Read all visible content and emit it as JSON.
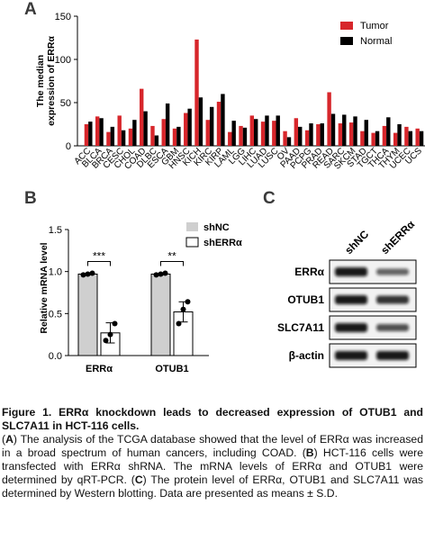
{
  "panels": {
    "a": "A",
    "b": "B",
    "c": "C"
  },
  "chart_data": [
    {
      "type": "bar",
      "ylabel": "The median expression of ERRα",
      "ylim": [
        0,
        150
      ],
      "yticks": [
        0,
        50,
        100,
        150
      ],
      "legend_position": "top-right",
      "categories": [
        "ACC",
        "BLCA",
        "BRCA",
        "CESC",
        "CHOL",
        "COAD",
        "DLBC",
        "ESCA",
        "GBM",
        "HNSC",
        "KICH",
        "KIRC",
        "KIRP",
        "LAML",
        "LGG",
        "LIHC",
        "LUAD",
        "LUSC",
        "OV",
        "PAAD",
        "PCPG",
        "PRAD",
        "READ",
        "SARC",
        "SKCM",
        "STAD",
        "TGCT",
        "THCA",
        "THYM",
        "UCEC",
        "UCS"
      ],
      "series": [
        {
          "name": "Tumor",
          "color": "#d7262b",
          "values": [
            25,
            34,
            16,
            35,
            20,
            66,
            23,
            31,
            20,
            38,
            123,
            30,
            51,
            16,
            23,
            35,
            28,
            29,
            17,
            32,
            18,
            25,
            62,
            26,
            27,
            17,
            15,
            23,
            15,
            22,
            20
          ]
        },
        {
          "name": "Normal",
          "color": "#000000",
          "values": [
            28,
            32,
            22,
            18,
            30,
            40,
            12,
            49,
            22,
            43,
            56,
            45,
            60,
            29,
            21,
            31,
            35,
            35,
            10,
            22,
            26,
            26,
            37,
            36,
            34,
            30,
            17,
            33,
            25,
            17,
            17
          ]
        }
      ]
    },
    {
      "type": "bar",
      "ylabel": "Relative mRNA level",
      "ylim": [
        0,
        1.5
      ],
      "yticks": [
        "0.0",
        "0.5",
        "1.0",
        "1.5"
      ],
      "legend_position": "top-right",
      "categories": [
        "ERRα",
        "OTUB1"
      ],
      "series": [
        {
          "name": "shNC",
          "color": "#cfcfcf",
          "values": [
            0.97,
            0.97
          ],
          "errors": [
            0.01,
            0.01
          ],
          "points": [
            [
              0.96,
              0.97,
              0.98
            ],
            [
              0.96,
              0.97,
              0.98
            ]
          ]
        },
        {
          "name": "shERRα",
          "color": "#ffffff",
          "values": [
            0.27,
            0.52
          ],
          "errors": [
            0.12,
            0.12
          ],
          "points": [
            [
              0.18,
              0.25,
              0.38
            ],
            [
              0.38,
              0.55,
              0.64
            ]
          ]
        }
      ],
      "significance": [
        "***",
        "**"
      ]
    }
  ],
  "western": {
    "lanes": [
      "shNC",
      "shERRα"
    ],
    "rows": [
      {
        "label": "ERRα",
        "intensity": [
          1.0,
          0.45
        ]
      },
      {
        "label": "OTUB1",
        "intensity": [
          1.0,
          0.8
        ]
      },
      {
        "label": "SLC7A11",
        "intensity": [
          1.0,
          0.6
        ]
      },
      {
        "label": "β-actin",
        "intensity": [
          1.0,
          1.0
        ]
      }
    ]
  },
  "caption": {
    "title": "Figure 1. ERRα knockdown leads to decreased expression of OTUB1 and SLC7A11 in HCT-116 cells.",
    "body": "(A) The analysis of the TCGA database showed that the level of ERRα was increased in a broad spectrum of human cancers, including COAD. (B) HCT-116 cells were transfected with ERRα shRNA. The mRNA levels of ERRα and OTUB1 were determined by qRT-PCR. (C) The protein level of ERRα, OTUB1 and SLC7A11 was determined by Western blotting. Data are presented as means ± S.D."
  }
}
